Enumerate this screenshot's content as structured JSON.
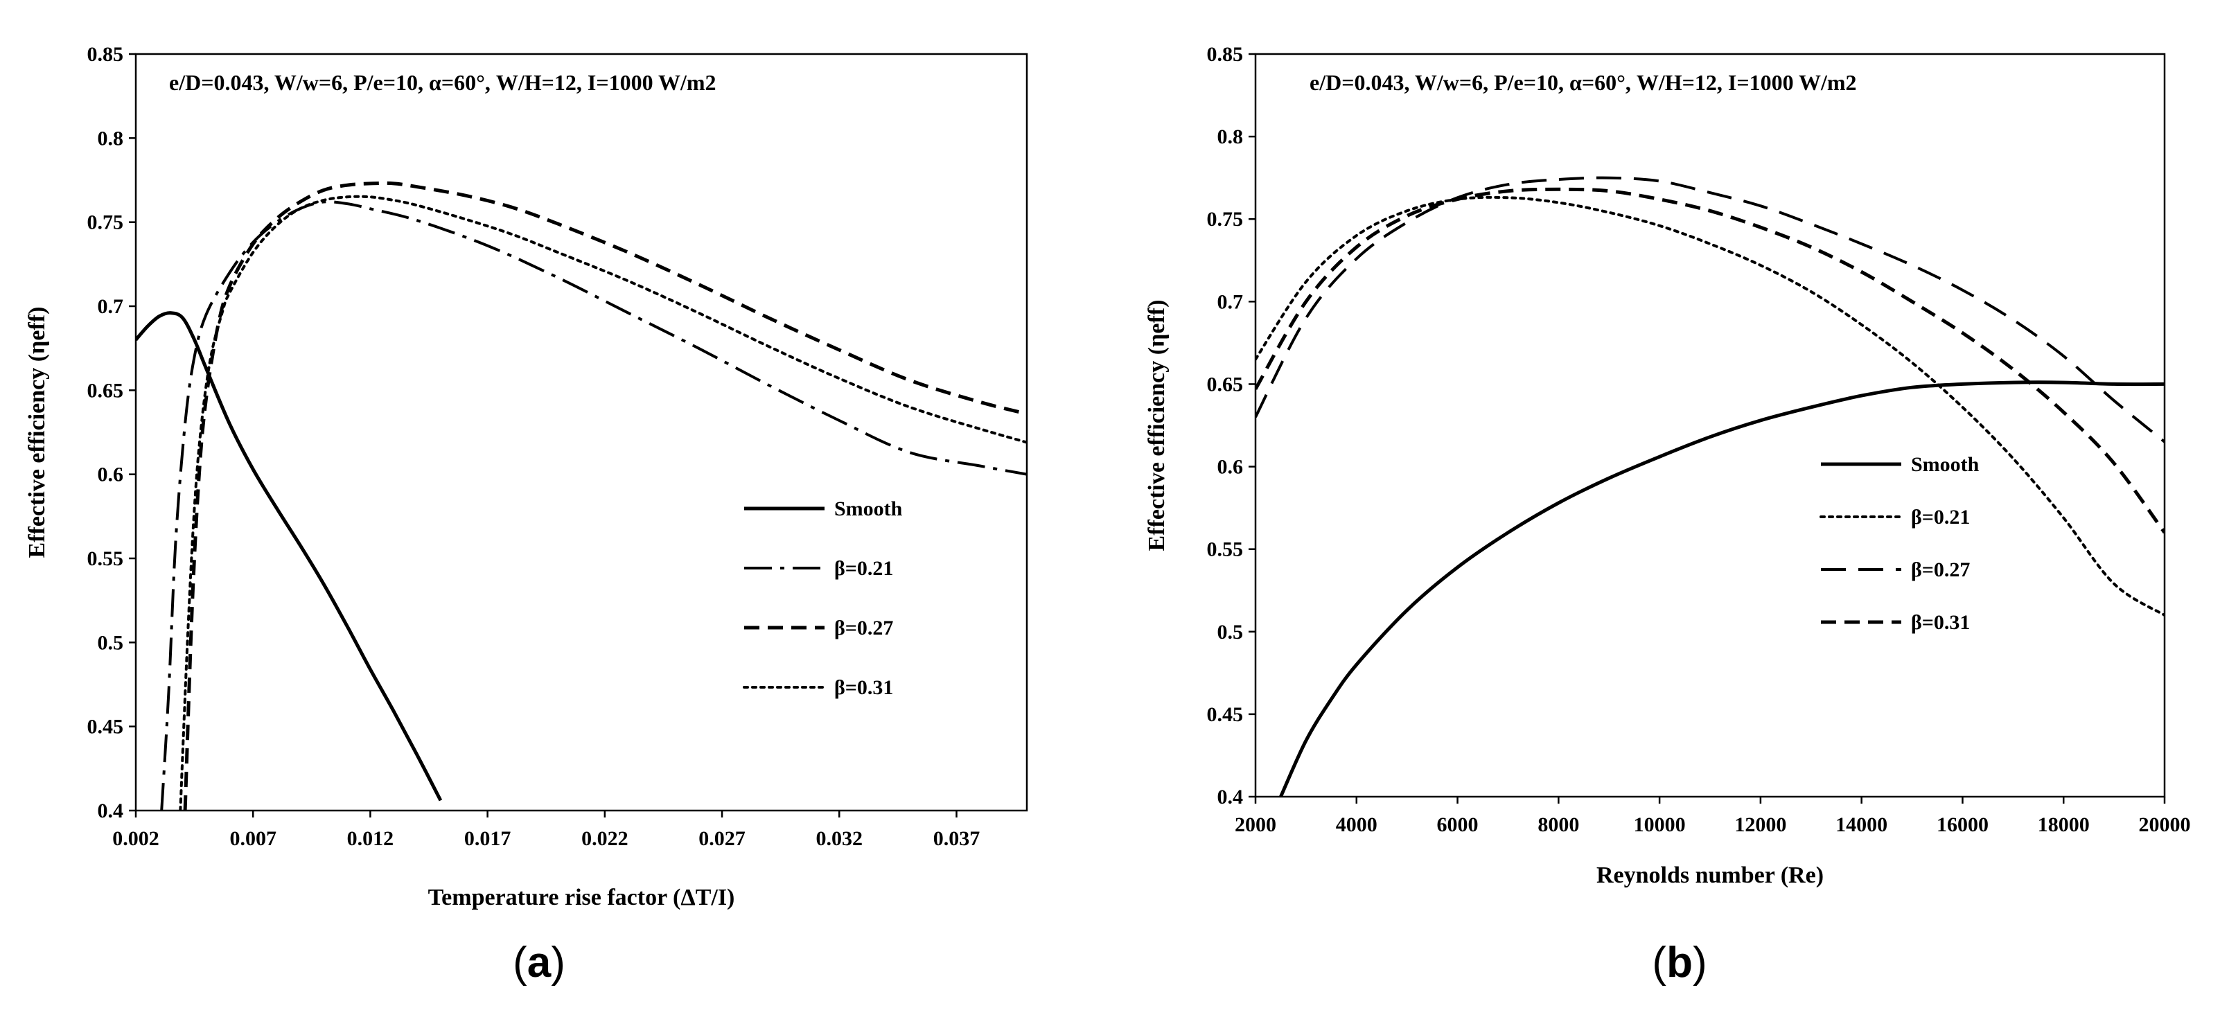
{
  "panel_labels": [
    "a",
    "b"
  ],
  "chart_data": [
    {
      "type": "line",
      "panel": "a",
      "title": "",
      "annotation": "e/D=0.043, W/w=6, P/e=10, α=60°, W/H=12, I=1000 W/m2",
      "xlabel": "Temperature rise factor (ΔT/I)",
      "ylabel": "Effective efficiency (ηeff)",
      "xlim": [
        0.002,
        0.04
      ],
      "ylim": [
        0.4,
        0.85
      ],
      "xticks": [
        0.002,
        0.007,
        0.012,
        0.017,
        0.022,
        0.027,
        0.032,
        0.037
      ],
      "xtick_labels": [
        "0.002",
        "0.007",
        "0.012",
        "0.017",
        "0.022",
        "0.027",
        "0.032",
        "0.037"
      ],
      "yticks": [
        0.4,
        0.45,
        0.5,
        0.55,
        0.6,
        0.65,
        0.7,
        0.75,
        0.8,
        0.85
      ],
      "ytick_labels": [
        "0.4",
        "0.45",
        "0.5",
        "0.55",
        "0.6",
        "0.65",
        "0.7",
        "0.75",
        "0.8",
        "0.85"
      ],
      "legend_position": "center-right",
      "series": [
        {
          "name": "Smooth",
          "style": "solid",
          "x": [
            0.002,
            0.0025,
            0.003,
            0.0035,
            0.004,
            0.0045,
            0.005,
            0.006,
            0.007,
            0.008,
            0.009,
            0.01,
            0.011,
            0.012,
            0.013,
            0.014,
            0.015
          ],
          "y": [
            0.68,
            0.688,
            0.694,
            0.696,
            0.693,
            0.68,
            0.663,
            0.63,
            0.603,
            0.58,
            0.558,
            0.535,
            0.51,
            0.484,
            0.459,
            0.433,
            0.406
          ]
        },
        {
          "name": "β=0.21",
          "style": "dashdot",
          "x": [
            0.0031,
            0.0034,
            0.0037,
            0.0041,
            0.0045,
            0.005,
            0.006,
            0.007,
            0.008,
            0.009,
            0.01,
            0.011,
            0.012,
            0.014,
            0.017,
            0.02,
            0.023,
            0.026,
            0.029,
            0.032,
            0.035,
            0.038,
            0.04
          ],
          "y": [
            0.4,
            0.47,
            0.56,
            0.63,
            0.67,
            0.695,
            0.72,
            0.738,
            0.75,
            0.758,
            0.762,
            0.761,
            0.758,
            0.751,
            0.736,
            0.717,
            0.696,
            0.675,
            0.653,
            0.632,
            0.613,
            0.605,
            0.6
          ]
        },
        {
          "name": "β=0.27",
          "style": "dashed",
          "x": [
            0.0041,
            0.0044,
            0.0047,
            0.005,
            0.0055,
            0.006,
            0.007,
            0.008,
            0.009,
            0.01,
            0.011,
            0.012,
            0.013,
            0.014,
            0.016,
            0.018,
            0.02,
            0.023,
            0.026,
            0.029,
            0.032,
            0.035,
            0.038,
            0.04
          ],
          "y": [
            0.4,
            0.52,
            0.6,
            0.645,
            0.688,
            0.712,
            0.737,
            0.752,
            0.762,
            0.769,
            0.772,
            0.773,
            0.773,
            0.771,
            0.766,
            0.759,
            0.749,
            0.732,
            0.713,
            0.693,
            0.674,
            0.656,
            0.643,
            0.636
          ]
        },
        {
          "name": "β=0.31",
          "style": "dotted",
          "x": [
            0.0039,
            0.0042,
            0.0045,
            0.0048,
            0.0052,
            0.0057,
            0.006,
            0.007,
            0.008,
            0.009,
            0.01,
            0.011,
            0.012,
            0.013,
            0.014,
            0.016,
            0.018,
            0.02,
            0.023,
            0.026,
            0.029,
            0.032,
            0.035,
            0.038,
            0.04
          ],
          "y": [
            0.4,
            0.5,
            0.58,
            0.63,
            0.67,
            0.697,
            0.708,
            0.732,
            0.748,
            0.758,
            0.763,
            0.765,
            0.765,
            0.763,
            0.76,
            0.752,
            0.743,
            0.732,
            0.715,
            0.696,
            0.676,
            0.657,
            0.64,
            0.627,
            0.619
          ]
        }
      ]
    },
    {
      "type": "line",
      "panel": "b",
      "title": "",
      "annotation": "e/D=0.043, W/w=6, P/e=10, α=60°, W/H=12, I=1000 W/m2",
      "xlabel": "Reynolds number (Re)",
      "ylabel": "Effective efficiency (ηeff)",
      "xlim": [
        2000,
        20000
      ],
      "ylim": [
        0.4,
        0.85
      ],
      "xticks": [
        2000,
        4000,
        6000,
        8000,
        10000,
        12000,
        14000,
        16000,
        18000,
        20000
      ],
      "xtick_labels": [
        "2000",
        "4000",
        "6000",
        "8000",
        "10000",
        "12000",
        "14000",
        "16000",
        "18000",
        "20000"
      ],
      "yticks": [
        0.4,
        0.45,
        0.5,
        0.55,
        0.6,
        0.65,
        0.7,
        0.75,
        0.8,
        0.85
      ],
      "ytick_labels": [
        "0.4",
        "0.45",
        "0.5",
        "0.55",
        "0.6",
        "0.65",
        "0.7",
        "0.75",
        "0.8",
        "0.85"
      ],
      "legend_position": "center-right",
      "series": [
        {
          "name": "Smooth",
          "style": "solid",
          "x": [
            2500,
            3000,
            3500,
            4000,
            5000,
            6000,
            7000,
            8000,
            9000,
            10000,
            11000,
            12000,
            13000,
            14000,
            15000,
            16000,
            17000,
            18000,
            19000,
            20000
          ],
          "y": [
            0.4,
            0.434,
            0.459,
            0.48,
            0.513,
            0.539,
            0.56,
            0.578,
            0.593,
            0.606,
            0.618,
            0.628,
            0.636,
            0.643,
            0.648,
            0.65,
            0.651,
            0.651,
            0.65,
            0.65
          ]
        },
        {
          "name": "β=0.21",
          "style": "dotted",
          "x": [
            2000,
            3000,
            4000,
            5000,
            6000,
            7000,
            8000,
            9000,
            10000,
            11000,
            12000,
            13000,
            14000,
            15000,
            16000,
            17000,
            18000,
            19000,
            20000
          ],
          "y": [
            0.665,
            0.712,
            0.74,
            0.755,
            0.762,
            0.763,
            0.76,
            0.754,
            0.746,
            0.735,
            0.722,
            0.706,
            0.686,
            0.663,
            0.636,
            0.605,
            0.569,
            0.529,
            0.51
          ]
        },
        {
          "name": "β=0.27",
          "style": "longdash",
          "x": [
            2000,
            3000,
            4000,
            5000,
            6000,
            7000,
            8000,
            9000,
            10000,
            11000,
            12000,
            13000,
            14000,
            15000,
            16000,
            17000,
            18000,
            19000,
            20000
          ],
          "y": [
            0.63,
            0.69,
            0.726,
            0.748,
            0.763,
            0.771,
            0.774,
            0.775,
            0.773,
            0.766,
            0.758,
            0.747,
            0.735,
            0.722,
            0.707,
            0.689,
            0.667,
            0.64,
            0.615
          ]
        },
        {
          "name": "β=0.31",
          "style": "dashed",
          "x": [
            2000,
            3000,
            4000,
            5000,
            6000,
            7000,
            8000,
            9000,
            10000,
            11000,
            12000,
            13000,
            14000,
            15000,
            16000,
            17000,
            18000,
            19000,
            20000
          ],
          "y": [
            0.647,
            0.7,
            0.733,
            0.752,
            0.762,
            0.767,
            0.768,
            0.767,
            0.762,
            0.755,
            0.745,
            0.733,
            0.718,
            0.7,
            0.681,
            0.659,
            0.633,
            0.602,
            0.56
          ]
        }
      ]
    }
  ]
}
